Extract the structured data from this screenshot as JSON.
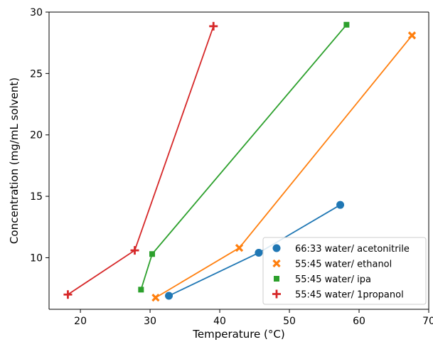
{
  "chart_data": {
    "type": "line",
    "title": "",
    "xlabel": "Temperature (°C)",
    "ylabel": "Concentration (mg/mL solvent)",
    "xlim": [
      15.5,
      70
    ],
    "ylim": [
      5.8,
      30
    ],
    "xticks": [
      20,
      30,
      40,
      50,
      60,
      70
    ],
    "yticks": [
      10,
      15,
      20,
      25,
      30
    ],
    "grid": false,
    "legend_position": "lower-right",
    "series": [
      {
        "name": "66:33 water/ acetonitrile",
        "marker": "circle",
        "color": "#1f77b4",
        "points": [
          [
            32.7,
            6.9
          ],
          [
            45.6,
            10.4
          ],
          [
            57.3,
            14.3
          ]
        ]
      },
      {
        "name": "55:45 water/ ethanol",
        "marker": "x",
        "color": "#ff7f0e",
        "points": [
          [
            30.8,
            6.75
          ],
          [
            42.8,
            10.8
          ],
          [
            67.6,
            28.1
          ]
        ]
      },
      {
        "name": "55:45 water/ ipa",
        "marker": "square",
        "color": "#2ca02c",
        "points": [
          [
            28.7,
            7.4
          ],
          [
            30.3,
            10.3
          ],
          [
            58.2,
            28.97
          ]
        ]
      },
      {
        "name": "55:45 water/ 1propanol",
        "marker": "plus",
        "color": "#d62728",
        "points": [
          [
            18.2,
            7.0
          ],
          [
            27.8,
            10.6
          ],
          [
            39.1,
            28.85
          ]
        ]
      }
    ]
  }
}
